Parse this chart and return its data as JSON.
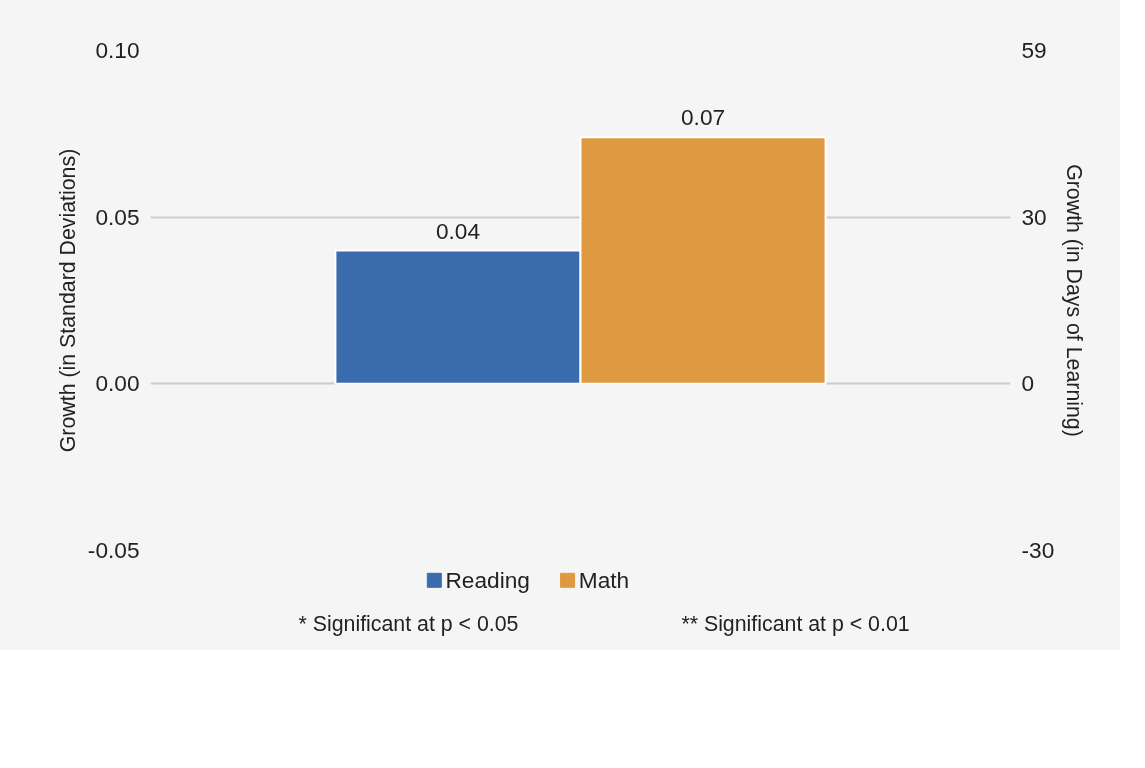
{
  "chart_data": {
    "type": "bar",
    "categories": [
      null
    ],
    "series": [
      {
        "name": "Reading",
        "color": "#3a6bad",
        "values": [
          0.04
        ],
        "value_labels": [
          "0.04"
        ]
      },
      {
        "name": "Math",
        "color": "#df9941",
        "values": [
          0.074
        ],
        "value_labels": [
          "0.07"
        ]
      }
    ],
    "ylabel": "Growth (in Standard Deviations)",
    "y2label": "Growth (in Days of Learning)",
    "ylim": [
      -0.05,
      0.1
    ],
    "yticks": [
      {
        "value": -0.05,
        "label": "-0.05"
      },
      {
        "value": 0,
        "label": "0.00"
      },
      {
        "value": 0.05,
        "label": "0.05"
      },
      {
        "value": 0.1,
        "label": "0.10"
      }
    ],
    "y2lim": [
      -29.5,
      59
    ],
    "y2ticks": [
      {
        "value": -29.5,
        "label": "-30"
      },
      0,
      {
        "value": 29.5,
        "label": "30"
      },
      59
    ],
    "grid": "y",
    "legend": "bottom",
    "annotations": [
      "* Significant at p < 0.05",
      "** Significant at p < 0.01"
    ]
  }
}
